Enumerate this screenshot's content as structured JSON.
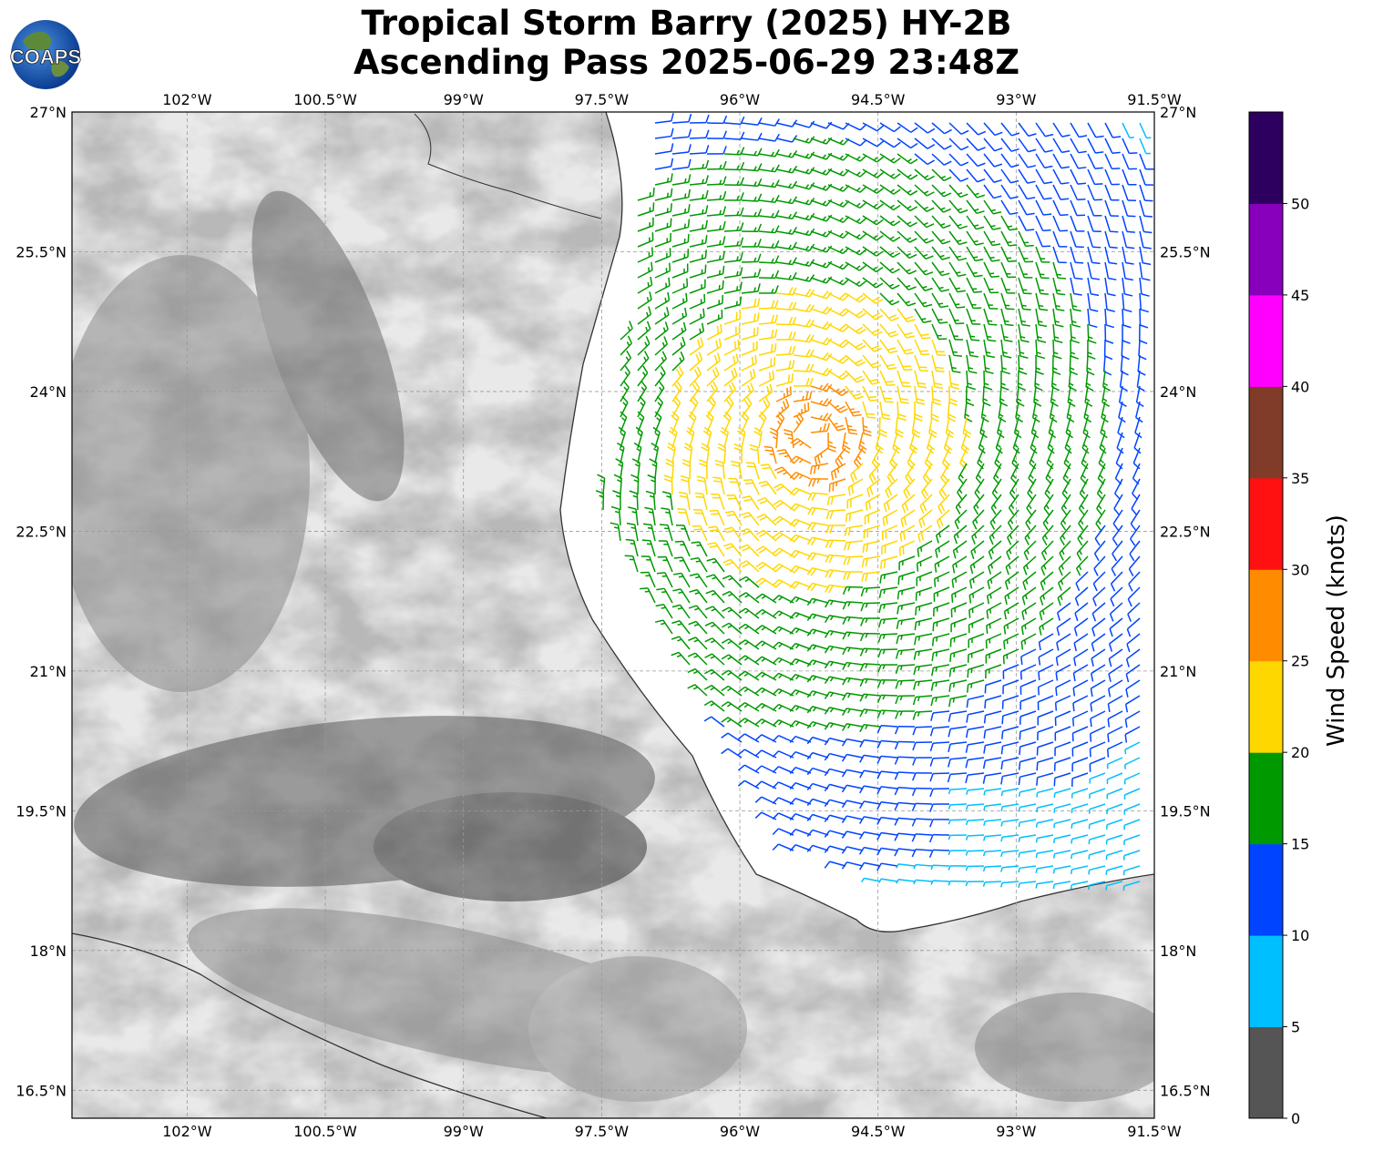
{
  "title": {
    "line1": "Tropical Storm Barry (2025) HY-2B",
    "line2": "Ascending Pass 2025-06-29 23:48Z"
  },
  "logo": {
    "text": "COAPS",
    "icon": "globe-icon"
  },
  "map": {
    "lon_range": [
      -103.25,
      -91.5
    ],
    "lat_range": [
      16.2,
      27.0
    ],
    "lon_ticks": [
      "102°W",
      "100.5°W",
      "99°W",
      "97.5°W",
      "96°W",
      "94.5°W",
      "93°W",
      "91.5°W"
    ],
    "lat_ticks": [
      "27°N",
      "25.5°N",
      "24°N",
      "22.5°N",
      "21°N",
      "19.5°N",
      "18°N",
      "16.5°N"
    ],
    "grid": true,
    "background": "grayscale terrain",
    "storm_center": {
      "lon": -95.2,
      "lat": 23.5
    }
  },
  "colorbar": {
    "label": "Wind Speed (knots)",
    "ticks": [
      "0",
      "5",
      "10",
      "15",
      "20",
      "25",
      "30",
      "35",
      "40",
      "45",
      "50"
    ],
    "colors": [
      "#555555",
      "#00bfff",
      "#0044ff",
      "#009900",
      "#ffd700",
      "#ff8c00",
      "#ff1111",
      "#803c28",
      "#ff00ff",
      "#8800bb",
      "#2d005f"
    ]
  }
}
